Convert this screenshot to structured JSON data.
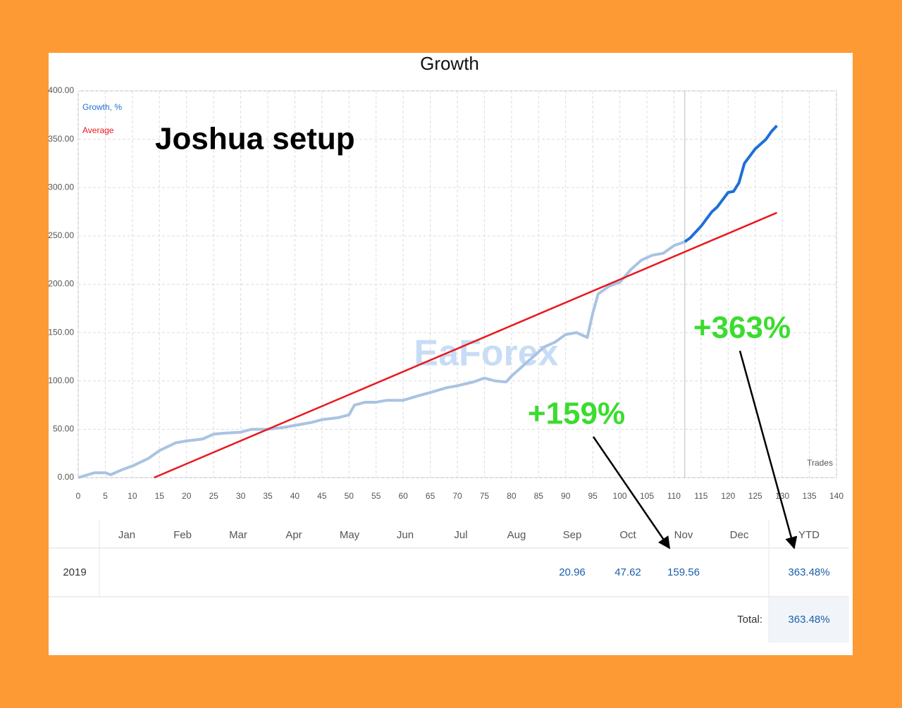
{
  "chart_data": {
    "type": "line",
    "title": "Growth",
    "annotations": {
      "setup": "Joshua setup",
      "total_gain": "+363%",
      "nov_gain": "+159%",
      "watermark": "EaForex"
    },
    "xlabel": "Trades",
    "xlim": [
      0,
      140
    ],
    "xticks": [
      0,
      5,
      10,
      15,
      20,
      25,
      30,
      35,
      40,
      45,
      50,
      55,
      60,
      65,
      70,
      75,
      80,
      85,
      90,
      95,
      100,
      105,
      110,
      115,
      120,
      125,
      130,
      135,
      140
    ],
    "ylim": [
      0,
      400
    ],
    "yticks": [
      {
        "value": 0,
        "label": "0.00"
      },
      {
        "value": 50,
        "label": "50.00"
      },
      {
        "value": 100,
        "label": "100.00"
      },
      {
        "value": 150,
        "label": "150.00"
      },
      {
        "value": 200,
        "label": "200.00"
      },
      {
        "value": 250,
        "label": "250.00"
      },
      {
        "value": 300,
        "label": "300.00"
      },
      {
        "value": 350,
        "label": "350.00"
      },
      {
        "value": 400,
        "label": "400.00"
      }
    ],
    "grid": true,
    "legend": "top-left",
    "cursor_x": 112,
    "series": [
      {
        "name": "Growth, %",
        "color": "#1f6fd6",
        "faded_color": "#a9c3e2",
        "x": [
          0,
          3,
          5,
          6,
          8,
          10,
          13,
          15,
          18,
          20,
          23,
          25,
          27,
          30,
          32,
          35,
          38,
          40,
          43,
          45,
          48,
          50,
          51,
          53,
          55,
          57,
          60,
          63,
          65,
          68,
          70,
          73,
          75,
          77,
          79,
          80,
          82,
          84,
          86,
          88,
          90,
          92,
          94,
          95,
          96,
          98,
          100,
          102,
          104,
          106,
          108,
          110,
          112,
          113,
          115,
          117,
          118,
          120,
          121,
          122,
          123,
          125,
          127,
          128,
          129
        ],
        "values": [
          0,
          5,
          5,
          3,
          8,
          12,
          20,
          28,
          36,
          38,
          40,
          45,
          46,
          47,
          50,
          50,
          52,
          54,
          57,
          60,
          62,
          65,
          75,
          78,
          78,
          80,
          80,
          85,
          88,
          93,
          95,
          99,
          103,
          100,
          99,
          105,
          115,
          125,
          135,
          140,
          148,
          150,
          145,
          170,
          190,
          198,
          202,
          215,
          225,
          230,
          232,
          240,
          244,
          248,
          260,
          275,
          280,
          295,
          296,
          305,
          325,
          340,
          350,
          358,
          364
        ]
      },
      {
        "name": "Average",
        "color": "#e8191e",
        "x": [
          14,
          129
        ],
        "values": [
          0,
          274
        ]
      }
    ]
  },
  "table": {
    "months": [
      "Jan",
      "Feb",
      "Mar",
      "Apr",
      "May",
      "Jun",
      "Jul",
      "Aug",
      "Sep",
      "Oct",
      "Nov",
      "Dec"
    ],
    "ytd_header": "YTD",
    "year": "2019",
    "values": [
      null,
      null,
      null,
      null,
      null,
      null,
      null,
      null,
      "20.96",
      "47.62",
      "159.56",
      null
    ],
    "ytd": "363.48%",
    "total_label": "Total:",
    "total": "363.48%"
  }
}
